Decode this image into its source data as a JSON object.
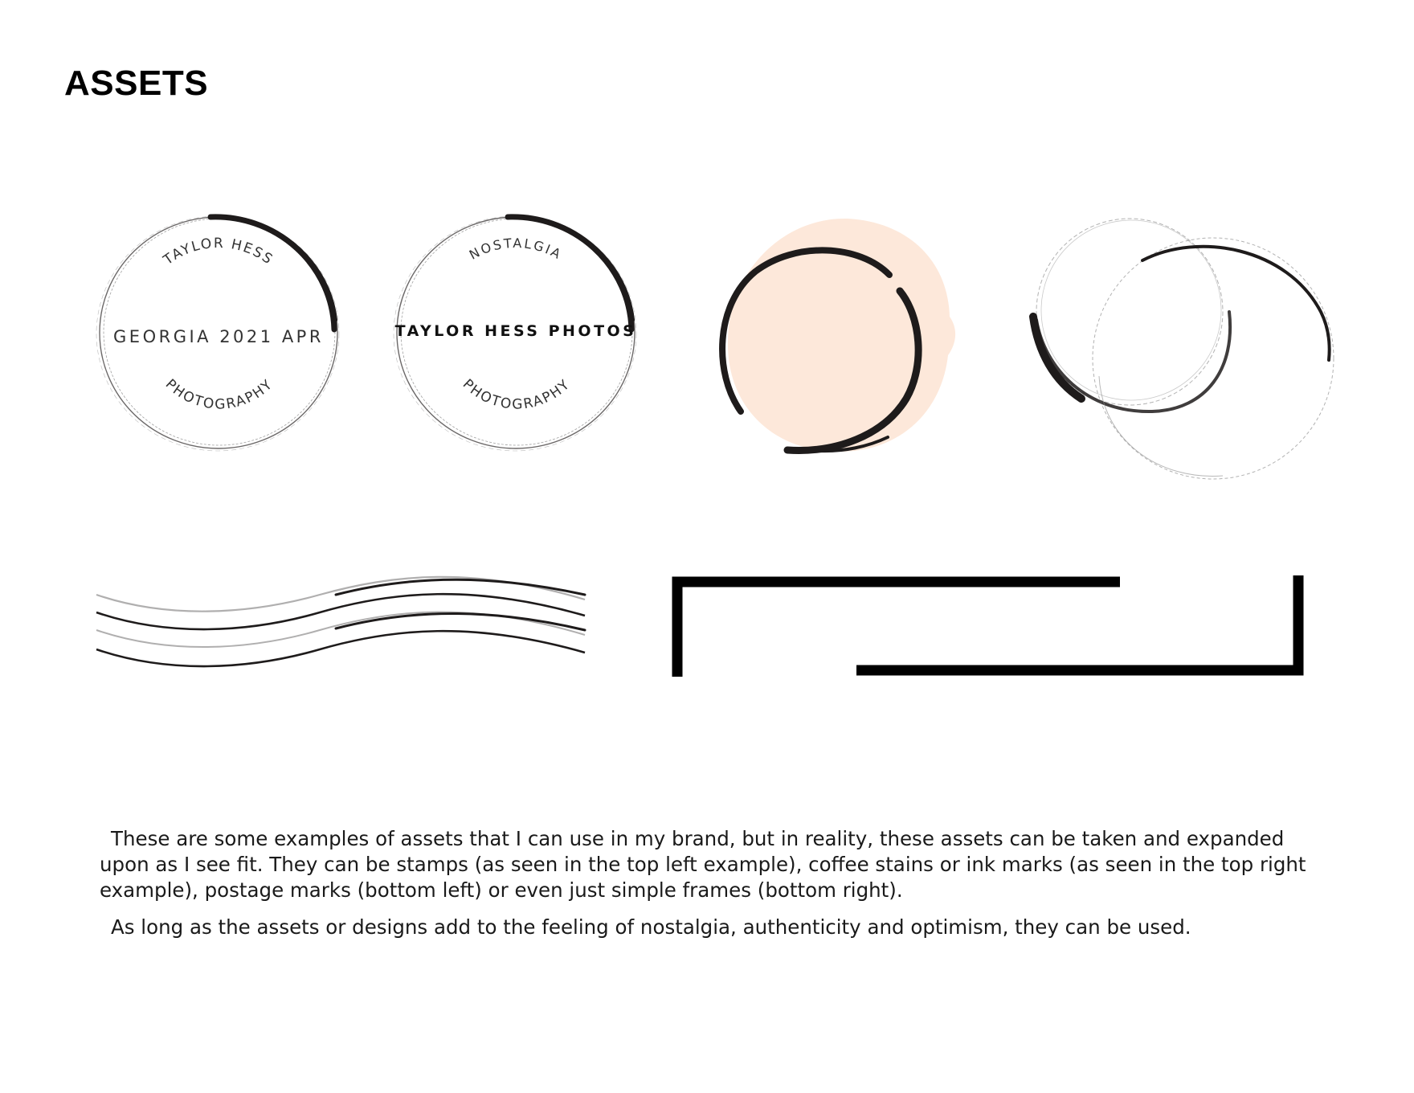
{
  "page": {
    "title": "ASSETS"
  },
  "assets": {
    "stamp_one": {
      "top_arc": "TAYLOR HESS",
      "center": "GEORGIA 2021 APR",
      "bottom_arc": "PHOTOGRAPHY"
    },
    "stamp_two": {
      "top_arc": "NOSTALGIA",
      "center": "TAYLOR HESS PHOTOS",
      "bottom_arc": "PHOTOGRAPHY"
    },
    "colors": {
      "ink": "#1e1b1b",
      "peach_stain": "#fde8da",
      "frame": "#000000"
    }
  },
  "description": {
    "paragraph_1": "These are some examples of assets that I can use in my brand, but in reality, these assets can be taken and expanded upon as I see fit. They can be stamps (as seen in the top left example), coffee stains or ink marks (as seen in the top right example), postage marks (bottom left) or even just simple frames (bottom right).",
    "paragraph_2": "As long as the assets or designs add to the feeling of nostalgia, authenticity and optimism, they can be used."
  }
}
